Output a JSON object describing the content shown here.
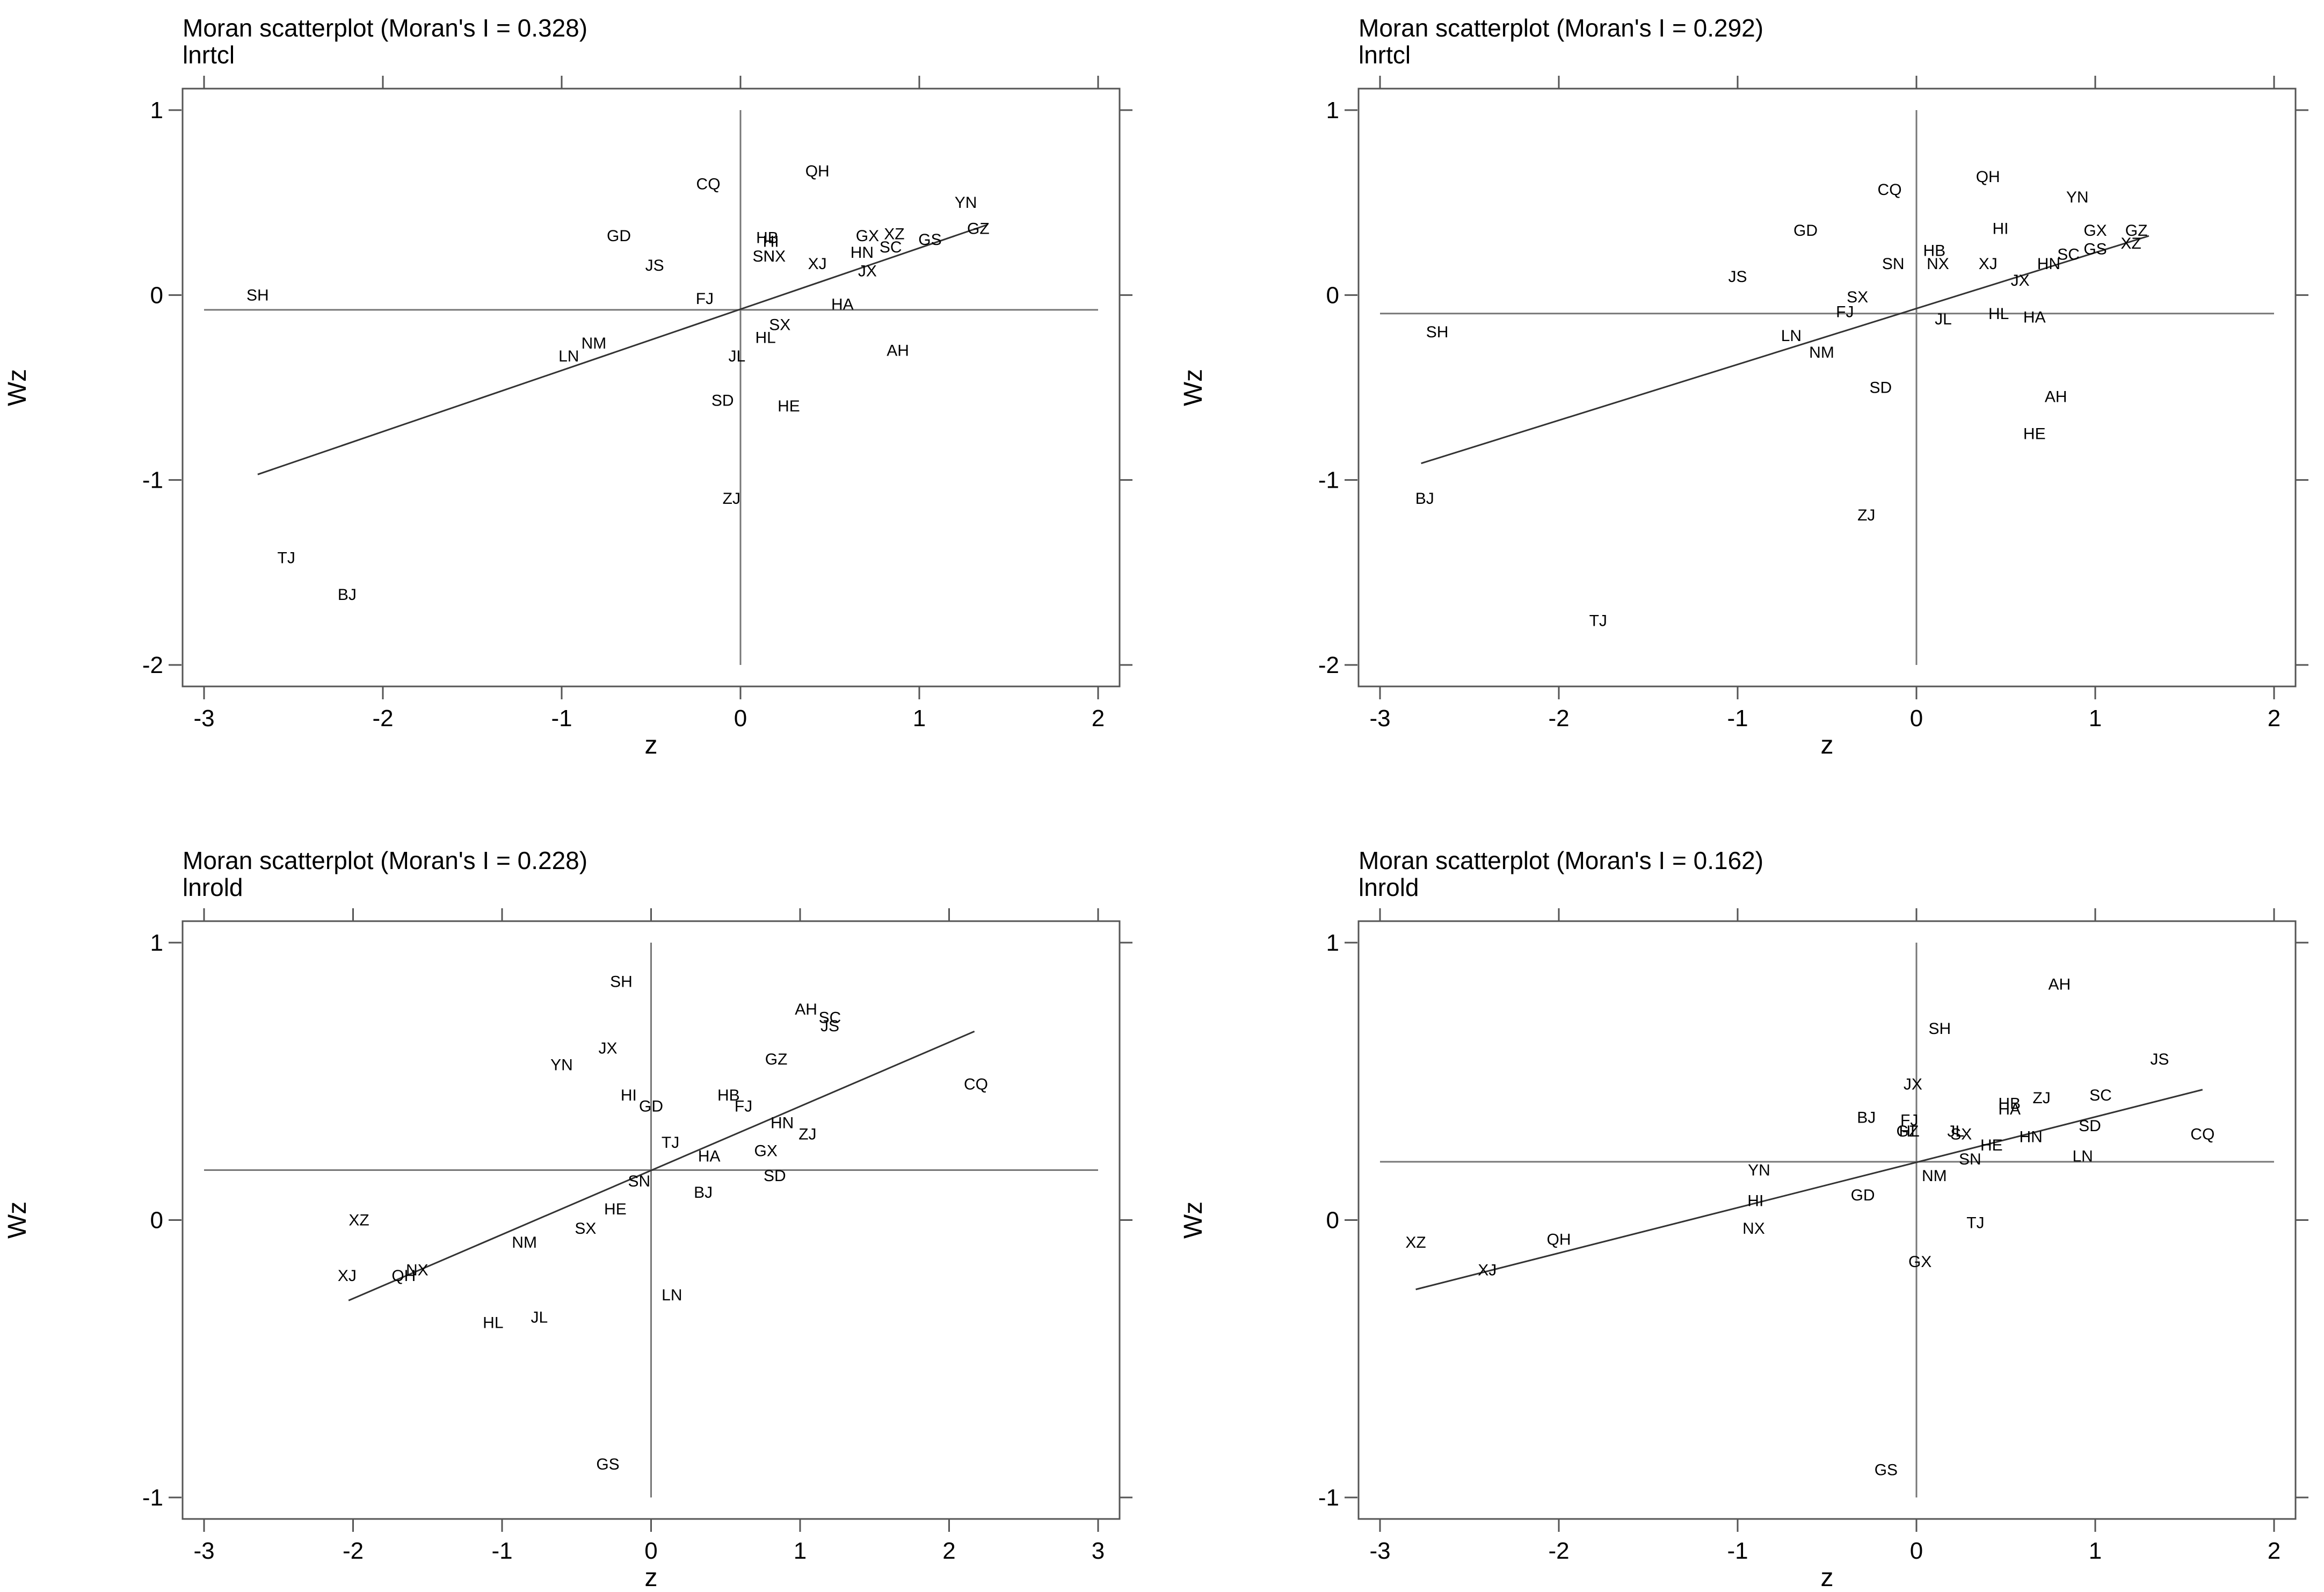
{
  "chart_data": [
    {
      "type": "scatter",
      "title": "Moran scatterplot (Moran's I = 0.328)",
      "subtitle": "lnrtcl",
      "xlabel": "z",
      "ylabel": "Wz",
      "xlim": [
        -3,
        2
      ],
      "ylim": [
        -2,
        1
      ],
      "xticks": [
        "-3",
        "-2",
        "-1",
        "0",
        "1",
        "2"
      ],
      "yticks": [
        "1",
        "0",
        "-1",
        "-2"
      ],
      "ref_lines": {
        "x": 0,
        "y": -0.08
      },
      "fit_line": {
        "x": [
          -2.7,
          1.38
        ],
        "y": [
          -0.97,
          0.38
        ]
      },
      "points": [
        {
          "label": "SH",
          "x": -2.7,
          "y": 0.0
        },
        {
          "label": "GD",
          "x": -0.68,
          "y": 0.32
        },
        {
          "label": "JS",
          "x": -0.48,
          "y": 0.16
        },
        {
          "label": "CQ",
          "x": -0.18,
          "y": 0.6
        },
        {
          "label": "FJ",
          "x": -0.2,
          "y": -0.02
        },
        {
          "label": "QH",
          "x": 0.43,
          "y": 0.67
        },
        {
          "label": "YN",
          "x": 1.26,
          "y": 0.5
        },
        {
          "label": "GZ",
          "x": 1.33,
          "y": 0.36
        },
        {
          "label": "GS",
          "x": 1.06,
          "y": 0.3
        },
        {
          "label": "GX",
          "x": 0.71,
          "y": 0.32
        },
        {
          "label": "XZ",
          "x": 0.86,
          "y": 0.33
        },
        {
          "label": "SC",
          "x": 0.84,
          "y": 0.26
        },
        {
          "label": "HN",
          "x": 0.68,
          "y": 0.23
        },
        {
          "label": "JX",
          "x": 0.71,
          "y": 0.13
        },
        {
          "label": "HB",
          "x": 0.15,
          "y": 0.31
        },
        {
          "label": "HI",
          "x": 0.17,
          "y": 0.29
        },
        {
          "label": "SN",
          "x": 0.13,
          "y": 0.21
        },
        {
          "label": "NX",
          "x": 0.19,
          "y": 0.21
        },
        {
          "label": "XJ",
          "x": 0.43,
          "y": 0.17
        },
        {
          "label": "HA",
          "x": 0.57,
          "y": -0.05
        },
        {
          "label": "SX",
          "x": 0.22,
          "y": -0.16
        },
        {
          "label": "HL",
          "x": 0.14,
          "y": -0.23
        },
        {
          "label": "AH",
          "x": 0.88,
          "y": -0.3
        },
        {
          "label": "JL",
          "x": -0.02,
          "y": -0.33
        },
        {
          "label": "NM",
          "x": -0.82,
          "y": -0.26
        },
        {
          "label": "LN",
          "x": -0.96,
          "y": -0.33
        },
        {
          "label": "SD",
          "x": -0.1,
          "y": -0.57
        },
        {
          "label": "HE",
          "x": 0.27,
          "y": -0.6
        },
        {
          "label": "ZJ",
          "x": -0.05,
          "y": -1.1
        },
        {
          "label": "TJ",
          "x": -2.54,
          "y": -1.42
        },
        {
          "label": "BJ",
          "x": -2.2,
          "y": -1.62
        }
      ]
    },
    {
      "type": "scatter",
      "title": "Moran scatterplot (Moran's I = 0.292)",
      "subtitle": "lnrtcl",
      "xlabel": "z",
      "ylabel": "Wz",
      "xlim": [
        -3,
        2
      ],
      "ylim": [
        -2,
        1
      ],
      "xticks": [
        "-3",
        "-2",
        "-1",
        "0",
        "1",
        "2"
      ],
      "yticks": [
        "1",
        "0",
        "-1",
        "-2"
      ],
      "ref_lines": {
        "x": 0,
        "y": -0.1
      },
      "fit_line": {
        "x": [
          -2.77,
          1.3
        ],
        "y": [
          -0.91,
          0.32
        ]
      },
      "points": [
        {
          "label": "SH",
          "x": -2.68,
          "y": -0.2
        },
        {
          "label": "BJ",
          "x": -2.75,
          "y": -1.1
        },
        {
          "label": "TJ",
          "x": -1.78,
          "y": -1.76
        },
        {
          "label": "JS",
          "x": -1.0,
          "y": 0.1
        },
        {
          "label": "GD",
          "x": -0.62,
          "y": 0.35
        },
        {
          "label": "LN",
          "x": -0.7,
          "y": -0.22
        },
        {
          "label": "NM",
          "x": -0.53,
          "y": -0.31
        },
        {
          "label": "SX",
          "x": -0.33,
          "y": -0.01
        },
        {
          "label": "FJ",
          "x": -0.4,
          "y": -0.09
        },
        {
          "label": "SD",
          "x": -0.2,
          "y": -0.5
        },
        {
          "label": "ZJ",
          "x": -0.28,
          "y": -1.19
        },
        {
          "label": "CQ",
          "x": -0.15,
          "y": 0.57
        },
        {
          "label": "SN",
          "x": -0.13,
          "y": 0.17
        },
        {
          "label": "HB",
          "x": 0.1,
          "y": 0.24
        },
        {
          "label": "NX",
          "x": 0.12,
          "y": 0.17
        },
        {
          "label": "JL",
          "x": 0.15,
          "y": -0.13
        },
        {
          "label": "QH",
          "x": 0.4,
          "y": 0.64
        },
        {
          "label": "HI",
          "x": 0.47,
          "y": 0.36
        },
        {
          "label": "XJ",
          "x": 0.4,
          "y": 0.17
        },
        {
          "label": "HL",
          "x": 0.46,
          "y": -0.1
        },
        {
          "label": "HA",
          "x": 0.66,
          "y": -0.12
        },
        {
          "label": "AH",
          "x": 0.78,
          "y": -0.55
        },
        {
          "label": "HE",
          "x": 0.66,
          "y": -0.75
        },
        {
          "label": "JX",
          "x": 0.58,
          "y": 0.08
        },
        {
          "label": "HN",
          "x": 0.74,
          "y": 0.17
        },
        {
          "label": "SC",
          "x": 0.85,
          "y": 0.22
        },
        {
          "label": "YN",
          "x": 0.9,
          "y": 0.53
        },
        {
          "label": "GX",
          "x": 1.0,
          "y": 0.35
        },
        {
          "label": "GS",
          "x": 1.0,
          "y": 0.25
        },
        {
          "label": "GZ",
          "x": 1.23,
          "y": 0.35
        },
        {
          "label": "XZ",
          "x": 1.2,
          "y": 0.28
        }
      ]
    },
    {
      "type": "scatter",
      "title": "Moran scatterplot (Moran's I = 0.228)",
      "subtitle": "lnrold",
      "xlabel": "z",
      "ylabel": "Wz",
      "xlim": [
        -3,
        3
      ],
      "ylim": [
        -1,
        1
      ],
      "xticks": [
        "-3",
        "-2",
        "-1",
        "0",
        "1",
        "2",
        "3"
      ],
      "yticks": [
        "1",
        "0",
        "-1"
      ],
      "ref_lines": {
        "x": 0,
        "y": 0.18
      },
      "fit_line": {
        "x": [
          -2.03,
          2.17
        ],
        "y": [
          -0.29,
          0.68
        ]
      },
      "points": [
        {
          "label": "XZ",
          "x": -1.96,
          "y": 0.0
        },
        {
          "label": "XJ",
          "x": -2.04,
          "y": -0.2
        },
        {
          "label": "QH",
          "x": -1.66,
          "y": -0.2
        },
        {
          "label": "NX",
          "x": -1.57,
          "y": -0.18
        },
        {
          "label": "HL",
          "x": -1.06,
          "y": -0.37
        },
        {
          "label": "JL",
          "x": -0.75,
          "y": -0.35
        },
        {
          "label": "NM",
          "x": -0.85,
          "y": -0.08
        },
        {
          "label": "SX",
          "x": -0.44,
          "y": -0.03
        },
        {
          "label": "HE",
          "x": -0.24,
          "y": 0.04
        },
        {
          "label": "YN",
          "x": -0.6,
          "y": 0.56
        },
        {
          "label": "JX",
          "x": -0.29,
          "y": 0.62
        },
        {
          "label": "SH",
          "x": -0.2,
          "y": 0.86
        },
        {
          "label": "HI",
          "x": -0.15,
          "y": 0.45
        },
        {
          "label": "GD",
          "x": 0.0,
          "y": 0.41
        },
        {
          "label": "SN",
          "x": -0.08,
          "y": 0.14
        },
        {
          "label": "TJ",
          "x": 0.13,
          "y": 0.28
        },
        {
          "label": "HA",
          "x": 0.39,
          "y": 0.23
        },
        {
          "label": "BJ",
          "x": 0.35,
          "y": 0.1
        },
        {
          "label": "LN",
          "x": 0.14,
          "y": -0.27
        },
        {
          "label": "GS",
          "x": -0.29,
          "y": -0.88
        },
        {
          "label": "HB",
          "x": 0.52,
          "y": 0.45
        },
        {
          "label": "FJ",
          "x": 0.62,
          "y": 0.41
        },
        {
          "label": "GZ",
          "x": 0.84,
          "y": 0.58
        },
        {
          "label": "GX",
          "x": 0.77,
          "y": 0.25
        },
        {
          "label": "HN",
          "x": 0.88,
          "y": 0.35
        },
        {
          "label": "SD",
          "x": 0.83,
          "y": 0.16
        },
        {
          "label": "ZJ",
          "x": 1.05,
          "y": 0.31
        },
        {
          "label": "AH",
          "x": 1.04,
          "y": 0.76
        },
        {
          "label": "SC",
          "x": 1.2,
          "y": 0.73
        },
        {
          "label": "JS",
          "x": 1.2,
          "y": 0.7
        },
        {
          "label": "CQ",
          "x": 2.18,
          "y": 0.49
        }
      ]
    },
    {
      "type": "scatter",
      "title": "Moran scatterplot (Moran's I = 0.162)",
      "subtitle": "lnrold",
      "xlabel": "z",
      "ylabel": "Wz",
      "xlim": [
        -3,
        2
      ],
      "ylim": [
        -1,
        1
      ],
      "xticks": [
        "-3",
        "-2",
        "-1",
        "0",
        "1",
        "2"
      ],
      "yticks": [
        "1",
        "0",
        "-1"
      ],
      "ref_lines": {
        "x": 0,
        "y": 0.21
      },
      "fit_line": {
        "x": [
          -2.8,
          1.6
        ],
        "y": [
          -0.25,
          0.47
        ]
      },
      "points": [
        {
          "label": "XZ",
          "x": -2.8,
          "y": -0.08
        },
        {
          "label": "XJ",
          "x": -2.4,
          "y": -0.18
        },
        {
          "label": "QH",
          "x": -2.0,
          "y": -0.07
        },
        {
          "label": "YN",
          "x": -0.88,
          "y": 0.18
        },
        {
          "label": "HI",
          "x": -0.9,
          "y": 0.07
        },
        {
          "label": "NX",
          "x": -0.91,
          "y": -0.03
        },
        {
          "label": "GD",
          "x": -0.3,
          "y": 0.09
        },
        {
          "label": "BJ",
          "x": -0.28,
          "y": 0.37
        },
        {
          "label": "JX",
          "x": -0.02,
          "y": 0.49
        },
        {
          "label": "SH",
          "x": 0.13,
          "y": 0.69
        },
        {
          "label": "FJ",
          "x": -0.04,
          "y": 0.36
        },
        {
          "label": "GZ",
          "x": -0.05,
          "y": 0.32
        },
        {
          "label": "HL",
          "x": -0.04,
          "y": 0.32
        },
        {
          "label": "JL",
          "x": 0.22,
          "y": 0.32
        },
        {
          "label": "SX",
          "x": 0.25,
          "y": 0.31
        },
        {
          "label": "HE",
          "x": 0.42,
          "y": 0.27
        },
        {
          "label": "SN",
          "x": 0.3,
          "y": 0.22
        },
        {
          "label": "NM",
          "x": 0.1,
          "y": 0.16
        },
        {
          "label": "TJ",
          "x": 0.33,
          "y": -0.01
        },
        {
          "label": "GX",
          "x": 0.02,
          "y": -0.15
        },
        {
          "label": "GS",
          "x": -0.17,
          "y": -0.9
        },
        {
          "label": "HB",
          "x": 0.52,
          "y": 0.42
        },
        {
          "label": "HA",
          "x": 0.52,
          "y": 0.4
        },
        {
          "label": "ZJ",
          "x": 0.7,
          "y": 0.44
        },
        {
          "label": "HN",
          "x": 0.64,
          "y": 0.3
        },
        {
          "label": "AH",
          "x": 0.8,
          "y": 0.85
        },
        {
          "label": "SC",
          "x": 1.03,
          "y": 0.45
        },
        {
          "label": "SD",
          "x": 0.97,
          "y": 0.34
        },
        {
          "label": "LN",
          "x": 0.93,
          "y": 0.23
        },
        {
          "label": "JS",
          "x": 1.36,
          "y": 0.58
        },
        {
          "label": "CQ",
          "x": 1.6,
          "y": 0.31
        }
      ]
    }
  ]
}
